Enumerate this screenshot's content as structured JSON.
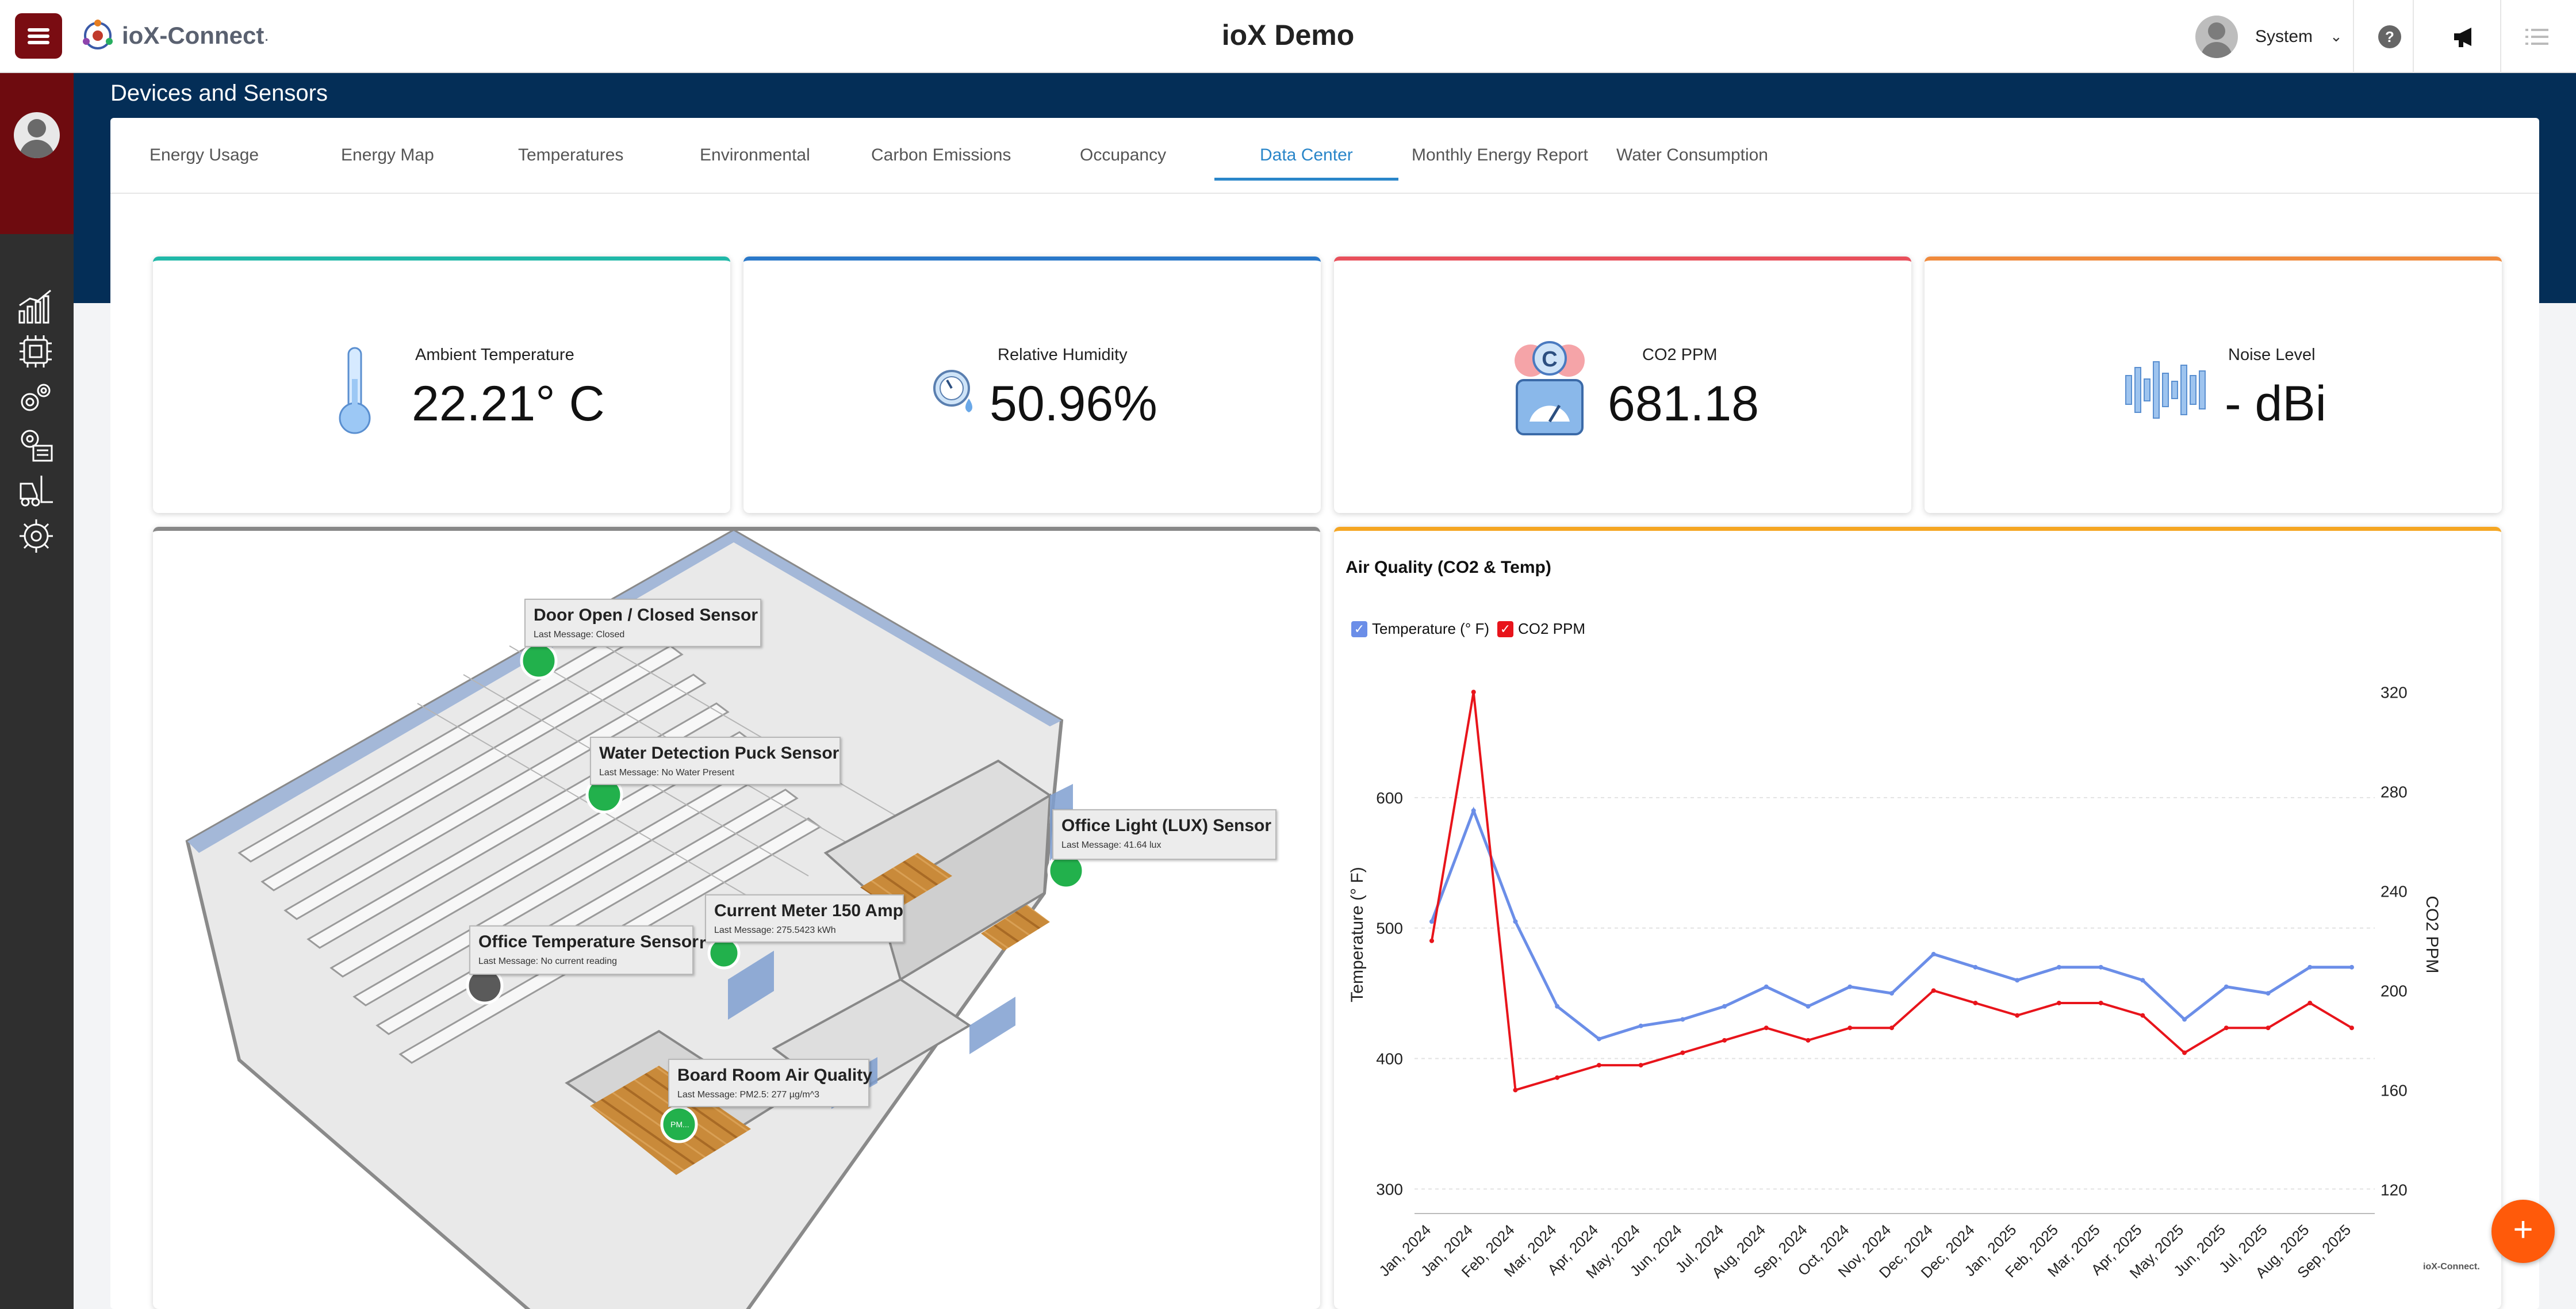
{
  "app": {
    "brand_name": "ioX-Connect",
    "brand_mark": ".",
    "title": "ioX Demo",
    "user_name": "System",
    "user_caret": "⌄"
  },
  "colors": {
    "brand_red": "#7a0c12",
    "nav_blue": "#042e57",
    "tab_active": "#2a86c9",
    "temp_series": "#6b8ee8",
    "co2_series": "#e8141b",
    "fab": "#ff5a0a"
  },
  "page": {
    "title": "Devices and Sensors"
  },
  "tabs": [
    {
      "label": "Energy Usage",
      "active": false
    },
    {
      "label": "Energy Map",
      "active": false
    },
    {
      "label": "Temperatures",
      "active": false
    },
    {
      "label": "Environmental",
      "active": false
    },
    {
      "label": "Carbon Emissions",
      "active": false
    },
    {
      "label": "Occupancy",
      "active": false
    },
    {
      "label": "Data Center",
      "active": true
    },
    {
      "label": "Monthly Energy Report",
      "active": false
    },
    {
      "label": "Water Consumption",
      "active": false
    }
  ],
  "cards": [
    {
      "label": "Ambient Temperature",
      "value": "22.21° C",
      "accent": "#20b8a8",
      "icon": "thermometer-icon"
    },
    {
      "label": "Relative Humidity",
      "value": "50.96%",
      "accent": "#2a78c9",
      "icon": "humidity-gauge-icon"
    },
    {
      "label": "CO2 PPM",
      "value": "681.18",
      "accent": "#e8505b",
      "icon": "co2-meter-icon"
    },
    {
      "label": "Noise Level",
      "value": "- dBi",
      "accent": "#f08a3c",
      "icon": "sound-wave-icon"
    }
  ],
  "floorplan": {
    "sensors": [
      {
        "name": "Door Open / Closed Sensor",
        "message": "Last Message: Closed"
      },
      {
        "name": "Water Detection Puck Sensor",
        "message": "Last Message: No Water Present"
      },
      {
        "name": "Office Light (LUX) Sensor",
        "message": "Last Message: 41.64 lux"
      },
      {
        "name": "Current Meter 150 Amp",
        "message": "Last Message: 275.5423 kWh"
      },
      {
        "name": "Office Temperature Sensor",
        "message": "Last Message: No current reading"
      },
      {
        "name": "Board Room Air Quality",
        "message": "Last Message: PM2.5: 277 µg/m^3"
      }
    ],
    "hidden_label_fragment": "r",
    "pin_text": "PM..."
  },
  "chart_data": {
    "type": "line",
    "title": "Air Quality (CO2 & Temp)",
    "legend_position": "top-left",
    "grid": true,
    "x": [
      "Jan, 2024",
      "Jan, 2024",
      "Feb, 2024",
      "Mar, 2024",
      "Apr, 2024",
      "May, 2024",
      "Jun, 2024",
      "Jul, 2024",
      "Aug, 2024",
      "Sep, 2024",
      "Oct, 2024",
      "Nov, 2024",
      "Dec, 2024",
      "Dec, 2024",
      "Jan, 2025",
      "Feb, 2025",
      "Mar, 2025",
      "Apr, 2025",
      "May, 2025",
      "Jun, 2025",
      "Jul, 2025",
      "Aug, 2025",
      "Sep, 2025"
    ],
    "xticks": [
      "Jan, 2024",
      "Jan, 2024",
      "Feb, 2024",
      "Mar, 2024",
      "Apr, 2024",
      "May, 2024",
      "Jun, 2024",
      "Jul, 2024",
      "Aug, 2024",
      "Sep, 2024",
      "Oct, 2024",
      "Nov, 2024",
      "Dec, 2024",
      "Dec, 2024",
      "Jan, 2025",
      "Feb, 2025",
      "Mar, 2025",
      "Apr, 2025",
      "May, 2025",
      "Jun, 2025",
      "Jul, 2025",
      "Aug, 2025",
      "Sep, 2025"
    ],
    "series": [
      {
        "name": "Temperature (° F)",
        "axis": "left",
        "color": "#6b8ee8",
        "values": [
          505,
          590,
          505,
          440,
          415,
          425,
          430,
          440,
          455,
          440,
          455,
          450,
          480,
          470,
          460,
          470,
          470,
          460,
          430,
          455,
          450,
          470,
          470
        ]
      },
      {
        "name": "CO2 PPM",
        "axis": "right",
        "color": "#e8141b",
        "values": [
          220,
          320,
          160,
          165,
          170,
          170,
          175,
          180,
          185,
          180,
          185,
          185,
          200,
          195,
          190,
          195,
          195,
          190,
          175,
          185,
          185,
          195,
          185
        ]
      }
    ],
    "ylabel": "Temperature (° F)",
    "y2label": "CO2 PPM",
    "ylim": [
      290,
      700
    ],
    "yticks": [
      300,
      400,
      500,
      600
    ],
    "y2lim": [
      115,
      330
    ],
    "y2ticks": [
      120,
      160,
      200,
      240,
      280,
      320
    ]
  }
}
